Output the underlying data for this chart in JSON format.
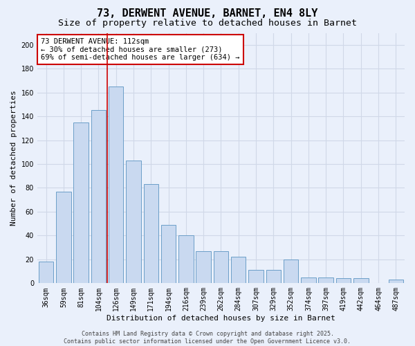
{
  "title1": "73, DERWENT AVENUE, BARNET, EN4 8LY",
  "title2": "Size of property relative to detached houses in Barnet",
  "xlabel": "Distribution of detached houses by size in Barnet",
  "ylabel": "Number of detached properties",
  "categories": [
    "36sqm",
    "59sqm",
    "81sqm",
    "104sqm",
    "126sqm",
    "149sqm",
    "171sqm",
    "194sqm",
    "216sqm",
    "239sqm",
    "262sqm",
    "284sqm",
    "307sqm",
    "329sqm",
    "352sqm",
    "374sqm",
    "397sqm",
    "419sqm",
    "442sqm",
    "464sqm",
    "487sqm"
  ],
  "values": [
    18,
    77,
    135,
    145,
    165,
    103,
    83,
    49,
    40,
    27,
    27,
    22,
    11,
    11,
    20,
    5,
    5,
    4,
    4,
    0,
    3
  ],
  "bar_color": "#c9d9f0",
  "bar_edge_color": "#6b9ec8",
  "red_line_x": 3.0,
  "annotation_text": "73 DERWENT AVENUE: 112sqm\n← 30% of detached houses are smaller (273)\n69% of semi-detached houses are larger (634) →",
  "annotation_box_color": "#ffffff",
  "annotation_box_edge": "#cc0000",
  "background_color": "#eaf0fb",
  "grid_color": "#d0d8e8",
  "ylim": [
    0,
    210
  ],
  "yticks": [
    0,
    20,
    40,
    60,
    80,
    100,
    120,
    140,
    160,
    180,
    200
  ],
  "footer1": "Contains HM Land Registry data © Crown copyright and database right 2025.",
  "footer2": "Contains public sector information licensed under the Open Government Licence v3.0.",
  "title1_fontsize": 11,
  "title2_fontsize": 9.5,
  "xlabel_fontsize": 8,
  "ylabel_fontsize": 8,
  "tick_fontsize": 7,
  "annotation_fontsize": 7.5,
  "footer_fontsize": 6
}
